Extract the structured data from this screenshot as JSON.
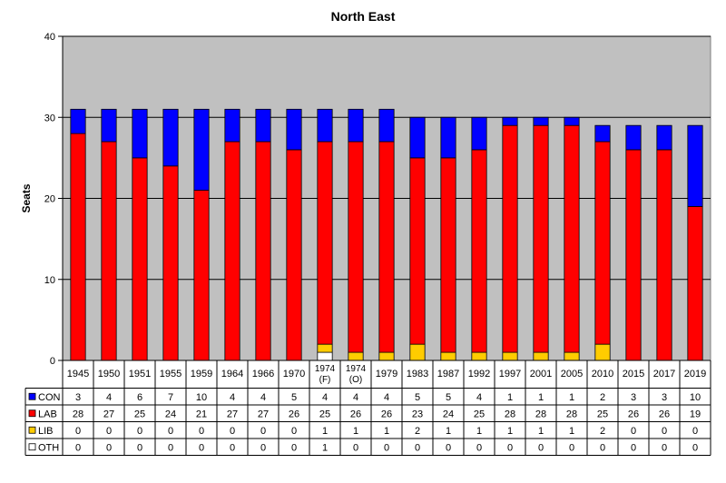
{
  "chart_data": {
    "type": "bar",
    "stacked": true,
    "title": "North East",
    "ylabel": "Seats",
    "xlabel": "",
    "ylim": [
      0,
      40
    ],
    "yticks": [
      0,
      10,
      20,
      30,
      40
    ],
    "grid": true,
    "legend": "data-table-left",
    "plot_background": "#c0c0c0",
    "categories": [
      "1945",
      "1950",
      "1951",
      "1955",
      "1959",
      "1964",
      "1966",
      "1970",
      "1974 (F)",
      "1974 (O)",
      "1979",
      "1983",
      "1987",
      "1992",
      "1997",
      "2001",
      "2005",
      "2010",
      "2015",
      "2017",
      "2019"
    ],
    "series": [
      {
        "name": "OTH",
        "color": "#ffffff",
        "values": [
          0,
          0,
          0,
          0,
          0,
          0,
          0,
          0,
          1,
          0,
          0,
          0,
          0,
          0,
          0,
          0,
          0,
          0,
          0,
          0,
          0
        ]
      },
      {
        "name": "LIB",
        "color": "#ffcc00",
        "values": [
          0,
          0,
          0,
          0,
          0,
          0,
          0,
          0,
          1,
          1,
          1,
          2,
          1,
          1,
          1,
          1,
          1,
          2,
          0,
          0,
          0
        ]
      },
      {
        "name": "LAB",
        "color": "#ff0000",
        "values": [
          28,
          27,
          25,
          24,
          21,
          27,
          27,
          26,
          25,
          26,
          26,
          23,
          24,
          25,
          28,
          28,
          28,
          25,
          26,
          26,
          19
        ]
      },
      {
        "name": "CON",
        "color": "#0000ff",
        "values": [
          3,
          4,
          6,
          7,
          10,
          4,
          4,
          5,
          4,
          4,
          4,
          5,
          5,
          4,
          1,
          1,
          1,
          2,
          3,
          3,
          10
        ]
      }
    ],
    "table_order": [
      "CON",
      "LAB",
      "LIB",
      "OTH"
    ]
  }
}
